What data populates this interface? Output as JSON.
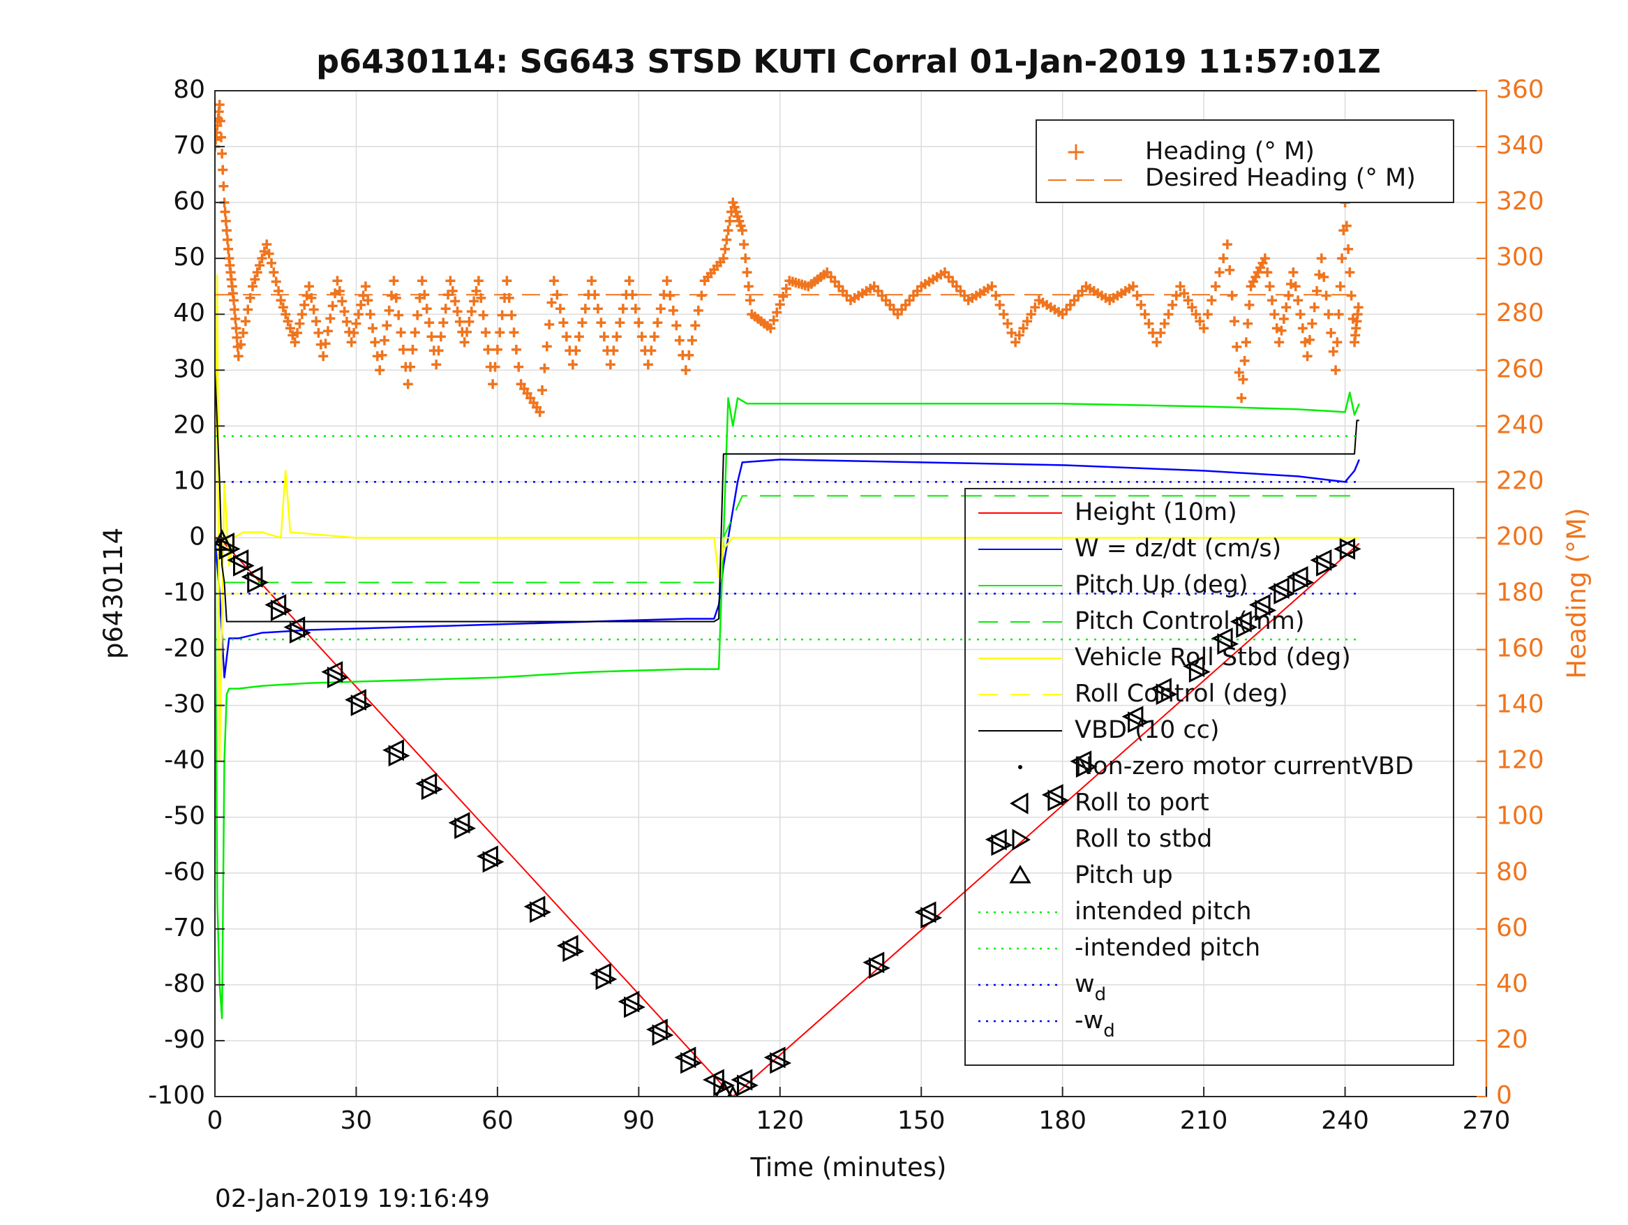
{
  "chart_data": {
    "type": "line",
    "title": "p6430114: SG643 STSD KUTI Corral 01-Jan-2019 11:57:01Z",
    "xlabel": "Time (minutes)",
    "ylabel": "p6430114",
    "y2label": "Heading (°M)",
    "footer": "02-Jan-2019 19:16:49",
    "xlim": [
      0,
      270
    ],
    "ylim": [
      -100,
      80
    ],
    "y2lim": [
      0,
      360
    ],
    "xticks": [
      "0",
      "30",
      "60",
      "90",
      "120",
      "150",
      "180",
      "210",
      "240",
      "270"
    ],
    "yticks": [
      "80",
      "70",
      "60",
      "50",
      "40",
      "30",
      "20",
      "10",
      "0",
      "-10",
      "-20",
      "-30",
      "-40",
      "-50",
      "-60",
      "-70",
      "-80",
      "-90",
      "-100"
    ],
    "y2ticks": [
      "360",
      "340",
      "320",
      "300",
      "280",
      "260",
      "240",
      "220",
      "200",
      "180",
      "160",
      "140",
      "120",
      "100",
      "80",
      "60",
      "40",
      "20",
      "0"
    ],
    "grid": true,
    "colors": {
      "height": "#ff0000",
      "w": "#0000ff",
      "pitch": "#00ee00",
      "roll": "#ffff00",
      "vbd": "#000000",
      "heading": "#f0741d",
      "markers": "#000000"
    },
    "legend_top": {
      "placement": "top-right",
      "entries": [
        "Heading (° M)",
        "Desired Heading (° M)"
      ]
    },
    "legend_main": {
      "placement": "right",
      "entries": [
        "Height (10m)",
        "W = dz/dt (cm/s)",
        "Pitch Up (deg)",
        "Pitch Control (mm)",
        "Vehicle Roll Stbd (deg)",
        "Roll Control (deg)",
        "VBD (10 cc)",
        "Non-zero motor currentVBD",
        "Roll to port",
        "Roll to stbd",
        "Pitch up",
        "intended pitch",
        "-intended pitch",
        "w_d",
        "-w_d"
      ],
      "wd_base": "w",
      "wd_sub": "d",
      "neg_wd_base": "-w",
      "neg_wd_sub": "d"
    },
    "series": [
      {
        "name": "Height (10m)",
        "x": [
          0,
          2,
          110,
          243
        ],
        "y": [
          0,
          -1,
          -100,
          -1
        ]
      },
      {
        "name": "W = dz/dt (cm/s)",
        "x": [
          0,
          1,
          2,
          3,
          5,
          10,
          20,
          40,
          60,
          80,
          100,
          106,
          107,
          108,
          110,
          111,
          112,
          120,
          150,
          180,
          210,
          230,
          240,
          242,
          243
        ],
        "y": [
          0,
          -10,
          -25,
          -18,
          -18,
          -17,
          -16.5,
          -16,
          -15.5,
          -15,
          -14.5,
          -14.5,
          -12,
          -5,
          5,
          10,
          13.5,
          14,
          13.5,
          13,
          12,
          11,
          10,
          12,
          14
        ]
      },
      {
        "name": "Pitch Up (deg)",
        "x": [
          0,
          0.5,
          1,
          1.5,
          2,
          2.5,
          3,
          5,
          10,
          20,
          40,
          60,
          80,
          100,
          107,
          108,
          109,
          110,
          111,
          113,
          120,
          150,
          180,
          210,
          230,
          240,
          241,
          242,
          243
        ],
        "y": [
          0,
          -65,
          -80,
          -86,
          -40,
          -28,
          -27,
          -27,
          -26.5,
          -26,
          -25.5,
          -25,
          -24,
          -23.5,
          -23.5,
          0,
          25,
          20,
          25,
          24,
          24,
          24,
          24,
          23.5,
          23,
          22.5,
          26,
          22,
          24
        ]
      },
      {
        "name": "Pitch Control (mm)",
        "x": [
          2,
          107,
          108,
          112,
          243
        ],
        "y": [
          -8,
          -8,
          0,
          7.5,
          7.5
        ]
      },
      {
        "name": "Vehicle Roll Stbd (deg)",
        "x": [
          0,
          0.5,
          1,
          2,
          3,
          4,
          6,
          10,
          14,
          15,
          16,
          30,
          60,
          100,
          106,
          107,
          108,
          110,
          112,
          150,
          180,
          210,
          243
        ],
        "y": [
          0,
          47,
          -40,
          10,
          -5,
          0,
          1,
          1,
          0,
          12,
          1,
          0,
          0,
          0,
          0,
          -7,
          -2,
          0,
          0,
          0,
          0,
          0,
          0
        ]
      },
      {
        "name": "Roll Control (deg)",
        "x": [
          2,
          107,
          108,
          243
        ],
        "y": [
          -10,
          -10,
          0,
          0
        ]
      },
      {
        "name": "VBD (10 cc)",
        "x": [
          0,
          1,
          1.5,
          2,
          2.5,
          106,
          107,
          108,
          242,
          242.5,
          243
        ],
        "y": [
          30,
          10,
          -5,
          -8,
          -15,
          -15,
          -14.5,
          15,
          15,
          21,
          21
        ]
      },
      {
        "name": "Heading (° M)",
        "x": [
          0,
          1,
          2,
          3,
          4,
          5,
          8,
          11,
          14,
          17,
          20,
          23,
          26,
          29,
          32,
          35,
          38,
          41,
          44,
          47,
          50,
          53,
          56,
          59,
          62,
          65,
          69,
          72,
          76,
          80,
          84,
          88,
          92,
          96,
          100,
          104,
          108,
          110,
          112,
          114,
          118,
          122,
          126,
          130,
          135,
          140,
          145,
          150,
          155,
          160,
          165,
          170,
          175,
          180,
          185,
          190,
          195,
          200,
          205,
          210,
          215,
          218,
          220,
          223,
          226,
          229,
          232,
          235,
          238,
          240,
          242,
          243
        ],
        "y": [
          340,
          355,
          320,
          300,
          285,
          265,
          290,
          305,
          285,
          270,
          290,
          265,
          292,
          270,
          290,
          260,
          292,
          255,
          292,
          262,
          292,
          270,
          292,
          255,
          292,
          255,
          245,
          292,
          262,
          292,
          262,
          292,
          262,
          292,
          260,
          292,
          300,
          320,
          310,
          280,
          275,
          292,
          290,
          295,
          285,
          290,
          280,
          290,
          295,
          285,
          290,
          270,
          285,
          280,
          290,
          285,
          290,
          270,
          290,
          275,
          305,
          250,
          290,
          300,
          270,
          295,
          265,
          300,
          260,
          320,
          270,
          285
        ]
      },
      {
        "name": "Desired Heading (° M)",
        "x": [
          0,
          243
        ],
        "y": [
          287,
          287
        ]
      },
      {
        "name": "intended pitch",
        "x": [
          0,
          243
        ],
        "y": [
          18.2,
          18.2
        ]
      },
      {
        "name": "-intended pitch",
        "x": [
          0,
          243
        ],
        "y": [
          -18.2,
          -18.2
        ]
      },
      {
        "name": "w_d",
        "x": [
          0,
          243
        ],
        "y": [
          10,
          10
        ]
      },
      {
        "name": "-w_d",
        "x": [
          0,
          243
        ],
        "y": [
          -10,
          -10
        ]
      }
    ],
    "markers": {
      "Roll to port": [
        [
          2,
          -1
        ],
        [
          5,
          -4
        ],
        [
          8,
          -7
        ],
        [
          13,
          -12
        ],
        [
          17,
          -16
        ],
        [
          25,
          -24
        ],
        [
          30,
          -29
        ],
        [
          38,
          -38
        ],
        [
          45,
          -44
        ],
        [
          52,
          -51
        ],
        [
          58,
          -57
        ],
        [
          68,
          -66
        ],
        [
          75,
          -73
        ],
        [
          82,
          -78
        ],
        [
          88,
          -83
        ],
        [
          94,
          -88
        ],
        [
          100,
          -93
        ],
        [
          106,
          -97
        ],
        [
          112,
          -97
        ],
        [
          119,
          -93
        ],
        [
          140,
          -76
        ],
        [
          151,
          -67
        ],
        [
          166,
          -54
        ],
        [
          178,
          -46
        ],
        [
          184,
          -40
        ],
        [
          195,
          -32
        ],
        [
          201,
          -27
        ],
        [
          208,
          -23
        ],
        [
          214,
          -18
        ],
        [
          218,
          -15
        ],
        [
          222,
          -12
        ],
        [
          226,
          -9
        ],
        [
          230,
          -7
        ],
        [
          235,
          -4
        ],
        [
          240,
          -2
        ]
      ],
      "Roll to stbd": [
        [
          3,
          -2
        ],
        [
          6,
          -5
        ],
        [
          9,
          -8
        ],
        [
          14,
          -13
        ],
        [
          18,
          -17
        ],
        [
          26,
          -25
        ],
        [
          31,
          -30
        ],
        [
          39,
          -39
        ],
        [
          46,
          -45
        ],
        [
          53,
          -52
        ],
        [
          59,
          -58
        ],
        [
          69,
          -67
        ],
        [
          76,
          -74
        ],
        [
          83,
          -79
        ],
        [
          89,
          -84
        ],
        [
          95,
          -89
        ],
        [
          101,
          -94
        ],
        [
          108,
          -98
        ],
        [
          113,
          -98
        ],
        [
          120,
          -94
        ],
        [
          141,
          -77
        ],
        [
          152,
          -68
        ],
        [
          167,
          -55
        ],
        [
          179,
          -47
        ],
        [
          185,
          -41
        ],
        [
          196,
          -33
        ],
        [
          202,
          -28
        ],
        [
          209,
          -24
        ],
        [
          215,
          -19
        ],
        [
          219,
          -16
        ],
        [
          223,
          -13
        ],
        [
          227,
          -10
        ],
        [
          231,
          -8
        ],
        [
          236,
          -5
        ],
        [
          241,
          -2
        ]
      ],
      "Pitch up": [
        [
          1.5,
          -0.5
        ],
        [
          108,
          -99
        ],
        [
          110,
          -100
        ]
      ]
    }
  }
}
